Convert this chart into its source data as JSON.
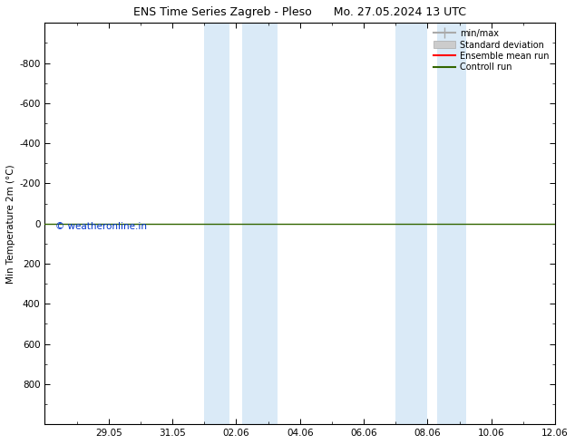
{
  "title_left": "ENS Time Series Zagreb - Pleso",
  "title_right": "Mo. 27.05.2024 13 UTC",
  "ylabel": "Min Temperature 2m (°C)",
  "ylim_bottom": 1000,
  "ylim_top": -1000,
  "yticks": [
    800,
    600,
    400,
    200,
    0,
    -200,
    -400,
    -600,
    -800
  ],
  "ytick_labels": [
    "800",
    "600",
    "400",
    "200",
    "0",
    "-200",
    "-400",
    "-600",
    "-800"
  ],
  "xlim": [
    0,
    16
  ],
  "xtick_positions": [
    2,
    4,
    6,
    8,
    10,
    12,
    14,
    16
  ],
  "xtick_labels": [
    "29.05",
    "31.05",
    "02.06",
    "04.06",
    "06.06",
    "08.06",
    "10.06",
    "12.06"
  ],
  "blue_bands": [
    [
      5.0,
      5.8
    ],
    [
      6.2,
      7.3
    ],
    [
      11.0,
      12.0
    ],
    [
      12.3,
      13.2
    ]
  ],
  "blue_band_color": "#daeaf7",
  "control_run_y": 0,
  "control_run_color": "#336600",
  "ensemble_mean_color": "#ff0000",
  "watermark": "© weatheronline.in",
  "watermark_color": "#0033cc",
  "background_color": "#ffffff",
  "plot_bg_color": "#ffffff",
  "legend_entries": [
    "min/max",
    "Standard deviation",
    "Ensemble mean run",
    "Controll run"
  ],
  "legend_colors_line": [
    "#aaaaaa",
    "#cccccc",
    "#ff0000",
    "#336600"
  ],
  "title_fontsize": 9,
  "axis_fontsize": 7.5
}
